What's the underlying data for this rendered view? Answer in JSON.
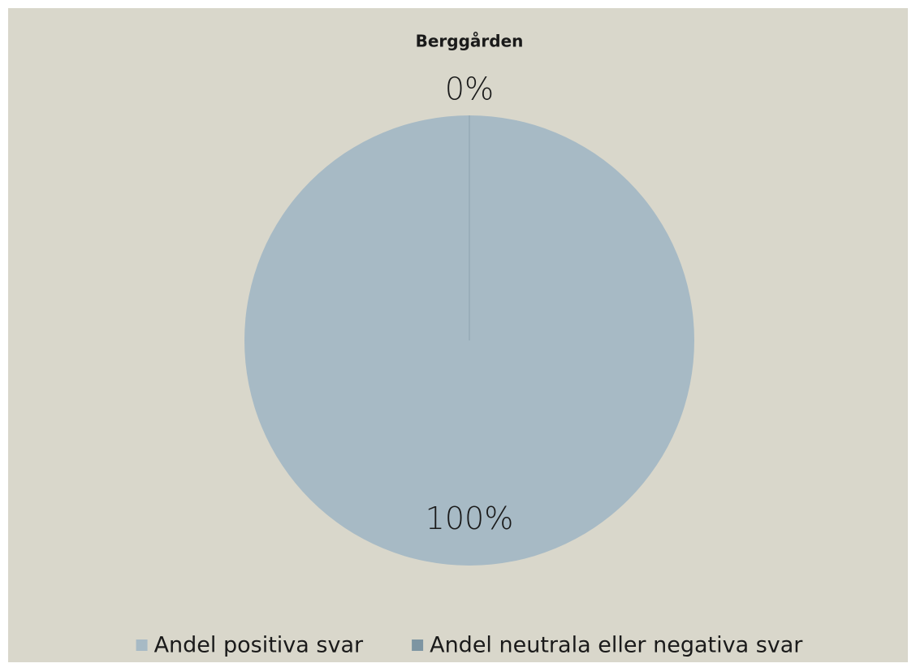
{
  "chart_data": {
    "type": "pie",
    "title": "Berggården",
    "categories": [
      "Andel positiva svar",
      "Andel neutrala eller negativa svar"
    ],
    "values": [
      100,
      0
    ],
    "value_labels": [
      "100%",
      "0%"
    ],
    "colors": [
      "#a7bac5",
      "#7d95a2"
    ],
    "legend": "bottom"
  }
}
